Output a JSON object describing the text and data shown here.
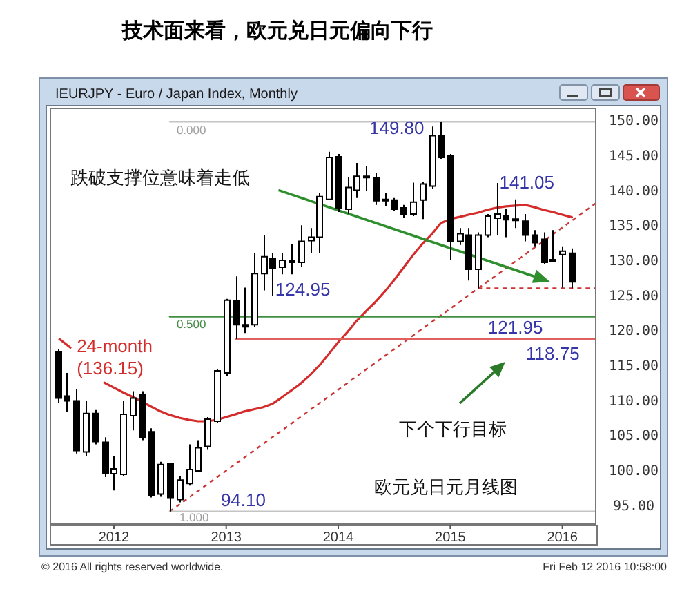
{
  "chart_data": {
    "type": "candlestick",
    "title": "技术面来看，欧元兑日元偏向下行",
    "subtitle": "IEURJPY - Euro / Japan Index, Monthly",
    "x": [
      "2011-07",
      "2011-08",
      "2011-09",
      "2011-10",
      "2011-11",
      "2011-12",
      "2012-01",
      "2012-02",
      "2012-03",
      "2012-04",
      "2012-05",
      "2012-06",
      "2012-07",
      "2012-08",
      "2012-09",
      "2012-10",
      "2012-11",
      "2012-12",
      "2013-01",
      "2013-02",
      "2013-03",
      "2013-04",
      "2013-05",
      "2013-06",
      "2013-07",
      "2013-08",
      "2013-09",
      "2013-10",
      "2013-11",
      "2013-12",
      "2014-01",
      "2014-02",
      "2014-03",
      "2014-04",
      "2014-05",
      "2014-06",
      "2014-07",
      "2014-08",
      "2014-09",
      "2014-10",
      "2014-11",
      "2014-12",
      "2015-01",
      "2015-02",
      "2015-03",
      "2015-04",
      "2015-05",
      "2015-06",
      "2015-07",
      "2015-08",
      "2015-09",
      "2015-10",
      "2015-11",
      "2015-12",
      "2016-01",
      "2016-02"
    ],
    "ohlc": [
      [
        116.9,
        117.3,
        109.6,
        110.3
      ],
      [
        110.6,
        113.9,
        108.3,
        109.9
      ],
      [
        109.9,
        111.6,
        102.4,
        102.8
      ],
      [
        102.6,
        109.9,
        102.0,
        108.1
      ],
      [
        108.1,
        108.6,
        103.7,
        104.1
      ],
      [
        104.0,
        104.7,
        99.0,
        99.5
      ],
      [
        99.5,
        102.0,
        97.1,
        100.2
      ],
      [
        99.4,
        109.9,
        99.1,
        108.0
      ],
      [
        107.8,
        111.3,
        105.7,
        110.3
      ],
      [
        110.8,
        111.3,
        104.3,
        104.7
      ],
      [
        105.5,
        106.0,
        96.1,
        96.4
      ],
      [
        96.6,
        101.2,
        96.2,
        100.8
      ],
      [
        100.9,
        101.0,
        94.1,
        96.1
      ],
      [
        95.8,
        99.1,
        95.4,
        98.6
      ],
      [
        98.1,
        103.7,
        97.8,
        100.1
      ],
      [
        99.9,
        104.3,
        99.7,
        103.2
      ],
      [
        103.4,
        107.6,
        103.0,
        107.3
      ],
      [
        107.0,
        114.5,
        106.7,
        114.2
      ],
      [
        113.9,
        124.5,
        113.5,
        124.3
      ],
      [
        124.2,
        127.7,
        118.75,
        120.8
      ],
      [
        120.8,
        126.1,
        119.6,
        120.5
      ],
      [
        120.8,
        131.0,
        120.5,
        128.1
      ],
      [
        128.1,
        133.6,
        125.7,
        130.5
      ],
      [
        130.3,
        131.0,
        124.95,
        128.8
      ],
      [
        129.0,
        131.0,
        128.0,
        130.0
      ],
      [
        130.0,
        132.3,
        128.0,
        129.7
      ],
      [
        129.7,
        135.0,
        129.0,
        132.7
      ],
      [
        132.8,
        134.6,
        131.0,
        133.3
      ],
      [
        133.3,
        139.6,
        131.0,
        139.1
      ],
      [
        138.7,
        145.5,
        138.6,
        144.7
      ],
      [
        144.8,
        145.2,
        136.9,
        137.4
      ],
      [
        137.3,
        141.9,
        136.6,
        140.4
      ],
      [
        140.0,
        143.9,
        138.9,
        142.0
      ],
      [
        141.8,
        143.5,
        139.9,
        142.0
      ],
      [
        141.8,
        142.5,
        137.9,
        138.5
      ],
      [
        138.7,
        139.6,
        137.8,
        138.5
      ],
      [
        138.6,
        138.9,
        137.1,
        137.3
      ],
      [
        137.5,
        137.9,
        136.1,
        136.5
      ],
      [
        136.6,
        141.1,
        136.3,
        138.3
      ],
      [
        138.6,
        141.2,
        135.9,
        140.9
      ],
      [
        140.6,
        149.1,
        140.2,
        147.8
      ],
      [
        147.8,
        149.8,
        144.5,
        144.7
      ],
      [
        144.9,
        145.2,
        130.0,
        132.7
      ],
      [
        132.7,
        134.6,
        132.2,
        133.8
      ],
      [
        133.6,
        134.6,
        127.1,
        128.7
      ],
      [
        128.7,
        134.0,
        126.0,
        133.6
      ],
      [
        133.6,
        136.6,
        133.3,
        136.3
      ],
      [
        136.0,
        141.05,
        133.6,
        136.6
      ],
      [
        136.4,
        137.3,
        133.3,
        135.8
      ],
      [
        135.9,
        138.7,
        134.6,
        135.7
      ],
      [
        135.6,
        136.6,
        132.7,
        133.6
      ],
      [
        133.6,
        134.3,
        132.0,
        132.5
      ],
      [
        133.0,
        134.0,
        129.4,
        129.7
      ],
      [
        130.1,
        134.3,
        129.7,
        129.9
      ],
      [
        130.8,
        132.0,
        126.1,
        131.3
      ],
      [
        131.0,
        131.7,
        126.0,
        126.9
      ]
    ],
    "series": [
      {
        "name": "24-month (136.15)",
        "type": "line",
        "color": "#d42b2b",
        "x": [
          "2011-12",
          "2012-01",
          "2012-02",
          "2012-03",
          "2012-04",
          "2012-05",
          "2012-06",
          "2012-07",
          "2012-08",
          "2012-09",
          "2012-10",
          "2012-11",
          "2012-12",
          "2013-01",
          "2013-02",
          "2013-03",
          "2013-04",
          "2013-05",
          "2013-06",
          "2013-07",
          "2013-08",
          "2013-09",
          "2013-10",
          "2013-11",
          "2013-12",
          "2014-01",
          "2014-02",
          "2014-03",
          "2014-04",
          "2014-05",
          "2014-06",
          "2014-07",
          "2014-08",
          "2014-09",
          "2014-10",
          "2014-11",
          "2014-12",
          "2015-01",
          "2015-02",
          "2015-03",
          "2015-04",
          "2015-05",
          "2015-06",
          "2015-07",
          "2015-08",
          "2015-09",
          "2015-10",
          "2015-11",
          "2015-12",
          "2016-01",
          "2016-02"
        ],
        "values": [
          112.5,
          111.8,
          111.1,
          110.5,
          109.8,
          109.1,
          108.4,
          107.9,
          107.5,
          107.2,
          107.0,
          107.0,
          107.2,
          107.6,
          108.0,
          108.4,
          108.7,
          109.0,
          109.5,
          110.4,
          111.4,
          112.4,
          113.6,
          115.0,
          116.6,
          118.3,
          119.8,
          121.3,
          122.7,
          124.0,
          125.5,
          127.1,
          128.9,
          130.7,
          132.3,
          133.7,
          135.3,
          135.9,
          136.2,
          136.5,
          136.8,
          137.2,
          137.5,
          137.7,
          137.8,
          137.9,
          137.6,
          137.2,
          136.9,
          136.5,
          136.15
        ]
      },
      {
        "type": "line",
        "color": "#cc3333",
        "line_style": "dashed",
        "x": [
          "2012-07",
          "2016-04-21"
        ],
        "values": [
          94.1,
          138.2
        ]
      },
      {
        "type": "line",
        "color": "#cc3333",
        "line_style": "dashed",
        "x": [
          "2015-04",
          "2016-04-21"
        ],
        "values": [
          126.0,
          126.0
        ]
      },
      {
        "type": "line",
        "color": "#c4c4c4",
        "line_style": "solid",
        "x": [
          "2012-07",
          "2016-04-21"
        ],
        "values": [
          149.8,
          149.8
        ]
      },
      {
        "type": "line",
        "color": "#3f8f3f",
        "line_style": "solid",
        "x": [
          "2012-07",
          "2016-04-21"
        ],
        "values": [
          121.95,
          121.95
        ]
      },
      {
        "type": "line",
        "color": "#c4c4c4",
        "line_style": "solid",
        "x": [
          "2012-07",
          "2016-04-21"
        ],
        "values": [
          94.1,
          94.1
        ]
      },
      {
        "type": "line",
        "color": "#e06060",
        "line_style": "solid",
        "x": [
          "2013-02",
          "2016-04-21"
        ],
        "values": [
          118.75,
          118.75
        ]
      }
    ],
    "annotations": [
      "跌破支撑位意味着走低",
      "下个下行目标",
      "欧元兑日元月线图",
      "© 2016 All rights reserved worldwide.",
      "Fri Feb 12 2016 10:58:00",
      {
        "text": "149.80",
        "x": "2014-12",
        "y": 149.8
      },
      {
        "text": "141.05",
        "x": "2015-06",
        "y": 141.05
      },
      {
        "text": "124.95",
        "x": "2013-06",
        "y": 124.95
      },
      {
        "text": "94.10",
        "x": "2012-07",
        "y": 94.1
      },
      {
        "text": "121.95",
        "x": "2015-08",
        "y": 121.95
      },
      {
        "text": "118.75",
        "x": "2015-12",
        "y": 118.75
      },
      {
        "text": "0.000",
        "x": "2012-07",
        "y": 149.8
      },
      {
        "text": "0.500",
        "x": "2012-07",
        "y": 121.95
      },
      {
        "text": "1.000",
        "x": "2012-07",
        "y": 94.1
      }
    ],
    "xlim": [
      "2011-06-06",
      "2016-04-21"
    ],
    "xticks": [
      {
        "value": "2012-01",
        "label": "2012"
      },
      {
        "value": "2013-01",
        "label": "2013"
      },
      {
        "value": "2014-01",
        "label": "2014"
      },
      {
        "value": "2015-01",
        "label": "2015"
      },
      {
        "value": "2016-01",
        "label": "2016"
      }
    ],
    "ylim": [
      92.2,
      151.8
    ],
    "yticks": [
      {
        "value": 95,
        "label": "95.00"
      },
      {
        "value": 100,
        "label": "100.00"
      },
      {
        "value": 105,
        "label": "105.00"
      },
      {
        "value": 110,
        "label": "110.00"
      },
      {
        "value": 115,
        "label": "115.00"
      },
      {
        "value": 120,
        "label": "120.00"
      },
      {
        "value": 125,
        "label": "125.00"
      },
      {
        "value": 130,
        "label": "130.00"
      },
      {
        "value": 135,
        "label": "135.00"
      },
      {
        "value": 140,
        "label": "140.00"
      },
      {
        "value": 145,
        "label": "145.00"
      },
      {
        "value": 150,
        "label": "150.00"
      }
    ]
  }
}
